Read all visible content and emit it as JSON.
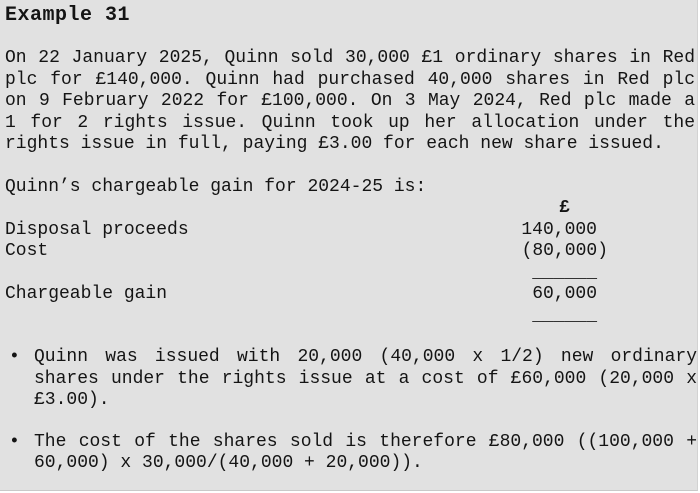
{
  "page": {
    "panel_background": "#e1e1e1",
    "page_background": "#ffffff",
    "text_color": "#141414"
  },
  "example": {
    "title": "Example 31",
    "intro": "On 22 January 2025, Quinn sold 30,000 £1 ordinary shares in Red plc for £140,000. Quinn had purchased 40,000 shares in Red plc on 9 February 2022 for £100,000. On 3 May 2024, Red plc made a 1 for 2 rights issue. Quinn took up her allocation under the rights issue in full, paying £3.00 for each new share issued.",
    "statement_heading": "Quinn’s chargeable gain for 2024-25 is:",
    "statement": {
      "currency_symbol": "£",
      "rows": [
        {
          "label": "Disposal proceeds",
          "amount": "140,000"
        },
        {
          "label": "Cost",
          "amount": "(80,000)"
        },
        {
          "label": "Chargeable gain",
          "amount": "60,000"
        }
      ],
      "total_rule": "______"
    },
    "bullets": [
      {
        "marker": "•",
        "text": "Quinn was issued with 20,000 (40,000 x 1/2) new ordinary shares under the rights issue at a cost of £60,000 (20,000 x £3.00)."
      },
      {
        "marker": "•",
        "text": "The cost of the shares sold is therefore £80,000 ((100,000 + 60,000) x 30,000/(40,000 + 20,000))."
      }
    ]
  }
}
